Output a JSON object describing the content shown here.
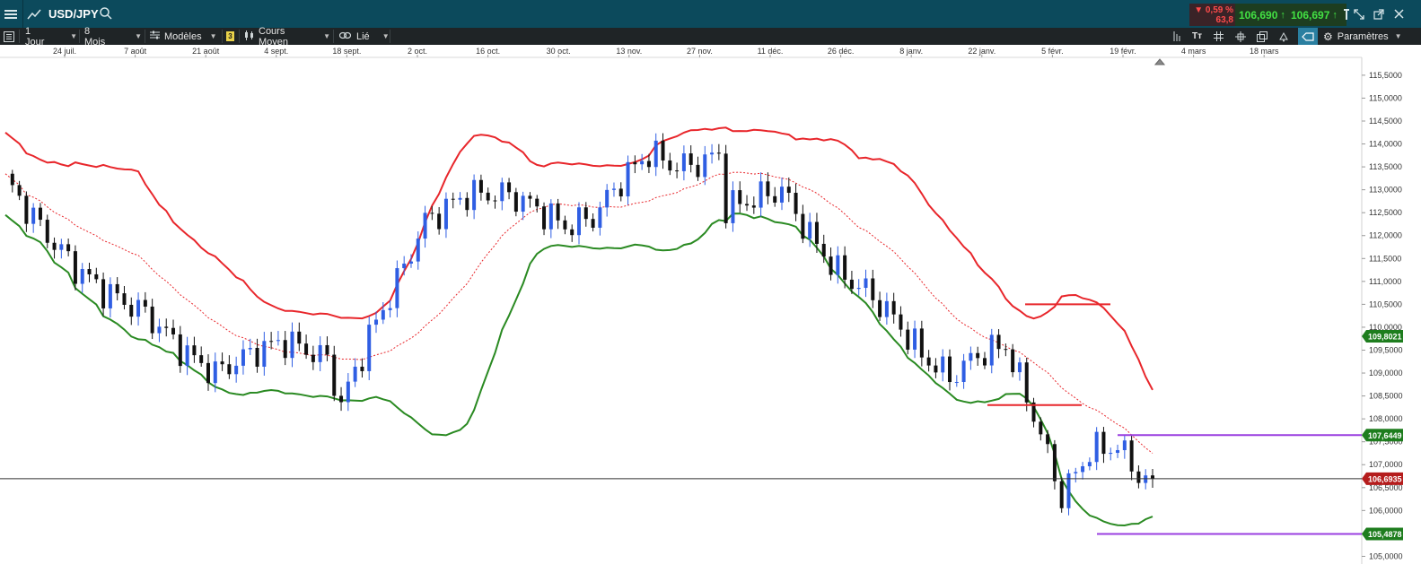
{
  "header": {
    "symbol": "USD/JPY",
    "change_pct": "▼ 0,59 %",
    "change_pts": "63,8",
    "bid": "106,690",
    "ask": "106,697"
  },
  "toolbar": {
    "interval": "1 Jour",
    "range": "8 Mois",
    "templates": "Modèles",
    "indicator_count": "3",
    "price_type": "Cours Moyen",
    "link": "Lié",
    "settings": "Paramètres"
  },
  "colors": {
    "up": "#2f5ee3",
    "down": "#111111",
    "band_upper": "#e8262b",
    "band_lower": "#2a8a22",
    "mid": "#e8262b",
    "hline_purple": "#9a3fe0",
    "label_green": "#1e7d1e",
    "label_red": "#b51c1c"
  },
  "chart_data": {
    "type": "candlestick",
    "instrument": "USD/JPY",
    "x_ticks": [
      "24 juil.",
      "7 août",
      "21 août",
      "4 sept.",
      "18 sept.",
      "2 oct.",
      "16 oct.",
      "30 oct.",
      "13 nov.",
      "27 nov.",
      "11 déc.",
      "26 déc.",
      "8 janv.",
      "22 janv.",
      "5 févr.",
      "19 févr.",
      "4 mars",
      "18 mars"
    ],
    "y_ticks": [
      "115,5000",
      "115,0000",
      "114,5000",
      "114,0000",
      "113,5000",
      "113,0000",
      "112,5000",
      "112,0000",
      "111,5000",
      "111,0000",
      "110,5000",
      "110,0000",
      "109,5000",
      "109,0000",
      "108,5000",
      "108,0000",
      "107,5000",
      "107,0000",
      "106,5000",
      "106,0000",
      "105,5000",
      "105,0000"
    ],
    "ylim": [
      104.95,
      115.85
    ],
    "price_labels": {
      "upper_band": "109,8021",
      "resistance": "107,6449",
      "last": "106,6935",
      "support": "105,4878"
    },
    "last_price": 106.6935,
    "resistance_level": 107.6449,
    "support_level": 105.4878,
    "indicators": [
      "Bollinger Bands"
    ]
  }
}
